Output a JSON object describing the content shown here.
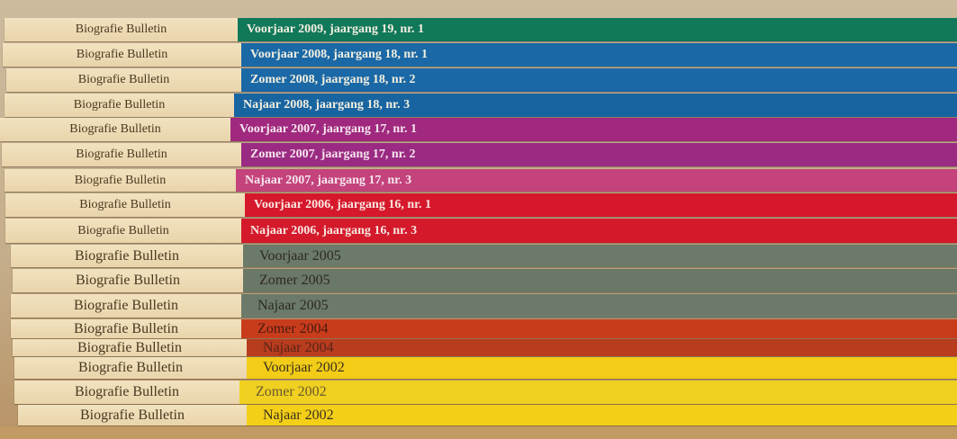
{
  "spines": [
    {
      "title": "Biografie Bulletin",
      "issue": "Voorjaar 2009, jaargang 19, nr. 1",
      "color": "#11785a",
      "text_color": "#f3efe0"
    },
    {
      "title": "Biografie Bulletin",
      "issue": "Voorjaar 2008, jaargang 18, nr. 1",
      "color": "#1a68a6",
      "text_color": "#f3efe0"
    },
    {
      "title": "Biografie Bulletin",
      "issue": "Zomer 2008, jaargang 18, nr. 2",
      "color": "#1a68a6",
      "text_color": "#f3efe0"
    },
    {
      "title": "Biografie Bulletin",
      "issue": "Najaar 2008, jaargang 18, nr. 3",
      "color": "#1864a0",
      "text_color": "#f3efe0"
    },
    {
      "title": "Biografie Bulletin",
      "issue": "Voorjaar 2007, jaargang 17, nr. 1",
      "color": "#a0287f",
      "text_color": "#f6e6ee"
    },
    {
      "title": "Biografie Bulletin",
      "issue": "Zomer 2007, jaargang 17, nr. 2",
      "color": "#9a2a82",
      "text_color": "#f6e6ee"
    },
    {
      "title": "Biografie Bulletin",
      "issue": "Najaar 2007, jaargang 17, nr. 3",
      "color": "#c4437c",
      "text_color": "#f6e6ee"
    },
    {
      "title": "Biografie Bulletin",
      "issue": "Voorjaar 2006, jaargang 16, nr. 1",
      "color": "#d6182c",
      "text_color": "#f8e6e0"
    },
    {
      "title": "Biografie Bulletin",
      "issue": "Najaar 2006, jaargang 16, nr. 3",
      "color": "#d4192b",
      "text_color": "#f8e6e0"
    },
    {
      "title": "Biografie Bulletin",
      "issue": "Voorjaar 2005",
      "color": "#6b7a69",
      "text_color": "#2e2a20"
    },
    {
      "title": "Biografie Bulletin",
      "issue": "Zomer 2005",
      "color": "#6a7867",
      "text_color": "#2e2a20"
    },
    {
      "title": "Biografie Bulletin",
      "issue": "Najaar 2005",
      "color": "#6b7a6a",
      "text_color": "#2e2a20"
    },
    {
      "title": "Biografie Bulletin",
      "issue": "Zomer 2004",
      "color": "#c83c1c",
      "text_color": "#4a1a10"
    },
    {
      "title": "Biografie Bulletin",
      "issue": "Najaar 2004",
      "color": "#b83c1e",
      "text_color": "#5a2418"
    },
    {
      "title": "Biografie Bulletin",
      "issue": "Voorjaar 2002",
      "color": "#f2cc16",
      "text_color": "#3a3020"
    },
    {
      "title": "Biografie Bulletin",
      "issue": "Zomer 2002",
      "color": "#f0d020",
      "text_color": "#6a5a30"
    },
    {
      "title": "Biografie Bulletin",
      "issue": "Najaar 2002",
      "color": "#f4cf18",
      "text_color": "#3a3020"
    }
  ]
}
